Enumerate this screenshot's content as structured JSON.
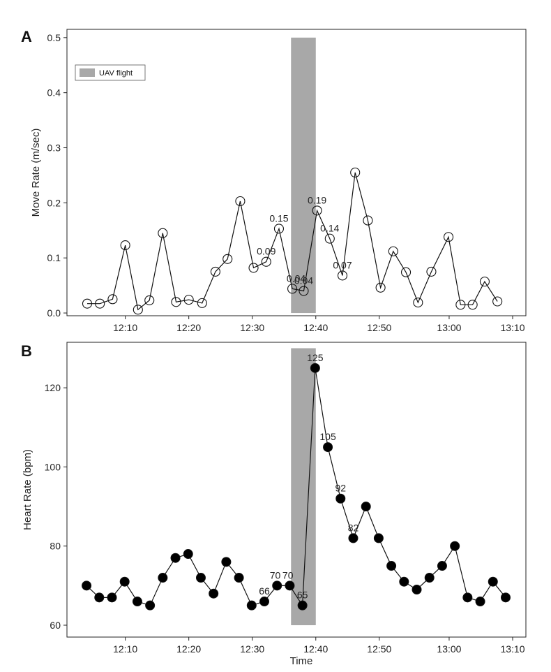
{
  "chart_data": [
    {
      "panel": "A",
      "type": "line",
      "marker": "open-circle",
      "ylabel": "Move Rate (m/sec)",
      "xlabel": "",
      "ylim": [
        -0.005,
        0.515
      ],
      "xlim_minutes": [
        1,
        72
      ],
      "x_ticks": [
        {
          "m": 10,
          "label": "12:10"
        },
        {
          "m": 20,
          "label": "12:20"
        },
        {
          "m": 30,
          "label": "12:30"
        },
        {
          "m": 40,
          "label": "12:40"
        },
        {
          "m": 50,
          "label": "12:50"
        },
        {
          "m": 61,
          "label": "13:00"
        },
        {
          "m": 71,
          "label": "13:10"
        }
      ],
      "y_ticks": [
        {
          "v": 0.0,
          "label": "0.0"
        },
        {
          "v": 0.1,
          "label": "0.1"
        },
        {
          "v": 0.2,
          "label": "0.2"
        },
        {
          "v": 0.3,
          "label": "0.3"
        },
        {
          "v": 0.4,
          "label": "0.4"
        },
        {
          "v": 0.5,
          "label": "0.5"
        }
      ],
      "shade": {
        "x_start": 36.1,
        "x_end": 40.0,
        "y_top": 0.5,
        "y_bottom": 0.0,
        "color": "#a8a8a8"
      },
      "legend": {
        "label": "UAV flight",
        "position": "top-left"
      },
      "points": [
        {
          "x": 4.0,
          "y": 0.017
        },
        {
          "x": 6.0,
          "y": 0.017
        },
        {
          "x": 8.0,
          "y": 0.025
        },
        {
          "x": 10.0,
          "y": 0.123
        },
        {
          "x": 12.0,
          "y": 0.006
        },
        {
          "x": 13.8,
          "y": 0.023
        },
        {
          "x": 15.9,
          "y": 0.145
        },
        {
          "x": 18.0,
          "y": 0.02
        },
        {
          "x": 20.0,
          "y": 0.024
        },
        {
          "x": 22.1,
          "y": 0.018
        },
        {
          "x": 24.2,
          "y": 0.075
        },
        {
          "x": 26.1,
          "y": 0.098
        },
        {
          "x": 28.1,
          "y": 0.203
        },
        {
          "x": 30.2,
          "y": 0.082
        },
        {
          "x": 32.2,
          "y": 0.093
        },
        {
          "x": 34.2,
          "y": 0.153
        },
        {
          "x": 36.3,
          "y": 0.044
        },
        {
          "x": 38.1,
          "y": 0.04
        },
        {
          "x": 40.2,
          "y": 0.186
        },
        {
          "x": 42.2,
          "y": 0.135
        },
        {
          "x": 44.2,
          "y": 0.068
        },
        {
          "x": 46.2,
          "y": 0.255
        },
        {
          "x": 48.2,
          "y": 0.168
        },
        {
          "x": 50.2,
          "y": 0.046
        },
        {
          "x": 52.2,
          "y": 0.112
        },
        {
          "x": 54.2,
          "y": 0.074
        },
        {
          "x": 56.1,
          "y": 0.019
        },
        {
          "x": 58.2,
          "y": 0.075
        },
        {
          "x": 60.9,
          "y": 0.138
        },
        {
          "x": 62.8,
          "y": 0.015
        },
        {
          "x": 64.7,
          "y": 0.015
        },
        {
          "x": 66.6,
          "y": 0.057
        },
        {
          "x": 68.6,
          "y": 0.021
        }
      ],
      "annotations": [
        {
          "text": "0.15",
          "x": 34.2,
          "y": 0.153
        },
        {
          "text": "0.09",
          "x": 32.2,
          "y": 0.093
        },
        {
          "text": "0.04",
          "x": 36.9,
          "y": 0.044
        },
        {
          "text": "0.04",
          "x": 38.1,
          "y": 0.04
        },
        {
          "text": "0.19",
          "x": 40.2,
          "y": 0.186
        },
        {
          "text": "0.14",
          "x": 42.2,
          "y": 0.135
        },
        {
          "text": "0.07",
          "x": 44.2,
          "y": 0.068
        }
      ]
    },
    {
      "panel": "B",
      "type": "line",
      "marker": "filled-circle",
      "ylabel": "Heart Rate (bpm)",
      "xlabel": "Time",
      "ylim": [
        57,
        131.5
      ],
      "xlim_minutes": [
        1,
        72
      ],
      "x_ticks": [
        {
          "m": 10,
          "label": "12:10"
        },
        {
          "m": 20,
          "label": "12:20"
        },
        {
          "m": 30,
          "label": "12:30"
        },
        {
          "m": 40,
          "label": "12:40"
        },
        {
          "m": 50,
          "label": "12:50"
        },
        {
          "m": 61,
          "label": "13:00"
        },
        {
          "m": 71,
          "label": "13:10"
        }
      ],
      "y_ticks": [
        {
          "v": 60,
          "label": "60"
        },
        {
          "v": 80,
          "label": "80"
        },
        {
          "v": 100,
          "label": "100"
        },
        {
          "v": 120,
          "label": "120"
        }
      ],
      "shade": {
        "x_start": 36.1,
        "x_end": 40.0,
        "y_top": 130,
        "y_bottom": 60,
        "color": "#a8a8a8"
      },
      "points": [
        {
          "x": 3.9,
          "y": 70
        },
        {
          "x": 5.9,
          "y": 67
        },
        {
          "x": 7.9,
          "y": 67
        },
        {
          "x": 9.9,
          "y": 71
        },
        {
          "x": 11.9,
          "y": 66
        },
        {
          "x": 13.9,
          "y": 65
        },
        {
          "x": 15.9,
          "y": 72
        },
        {
          "x": 17.9,
          "y": 77
        },
        {
          "x": 19.9,
          "y": 78
        },
        {
          "x": 21.9,
          "y": 72
        },
        {
          "x": 23.9,
          "y": 68
        },
        {
          "x": 25.9,
          "y": 76
        },
        {
          "x": 27.9,
          "y": 72
        },
        {
          "x": 29.9,
          "y": 65
        },
        {
          "x": 31.9,
          "y": 66
        },
        {
          "x": 33.9,
          "y": 70
        },
        {
          "x": 35.9,
          "y": 70
        },
        {
          "x": 37.9,
          "y": 65
        },
        {
          "x": 39.9,
          "y": 125
        },
        {
          "x": 41.9,
          "y": 105
        },
        {
          "x": 43.9,
          "y": 92
        },
        {
          "x": 45.9,
          "y": 82
        },
        {
          "x": 47.9,
          "y": 90
        },
        {
          "x": 49.9,
          "y": 82
        },
        {
          "x": 51.9,
          "y": 75
        },
        {
          "x": 53.9,
          "y": 71
        },
        {
          "x": 55.9,
          "y": 69
        },
        {
          "x": 57.9,
          "y": 72
        },
        {
          "x": 59.9,
          "y": 75
        },
        {
          "x": 61.9,
          "y": 80
        },
        {
          "x": 63.9,
          "y": 67
        },
        {
          "x": 65.9,
          "y": 66
        },
        {
          "x": 67.9,
          "y": 71
        },
        {
          "x": 69.9,
          "y": 67
        }
      ],
      "annotations": [
        {
          "text": "66",
          "x": 31.9,
          "y": 66
        },
        {
          "text": "70",
          "x": 33.6,
          "y": 70
        },
        {
          "text": "70",
          "x": 35.6,
          "y": 70
        },
        {
          "text": "65",
          "x": 37.9,
          "y": 65
        },
        {
          "text": "125",
          "x": 39.9,
          "y": 125
        },
        {
          "text": "105",
          "x": 41.9,
          "y": 105
        },
        {
          "text": "92",
          "x": 43.9,
          "y": 92
        },
        {
          "text": "82",
          "x": 45.9,
          "y": 82
        }
      ]
    }
  ]
}
